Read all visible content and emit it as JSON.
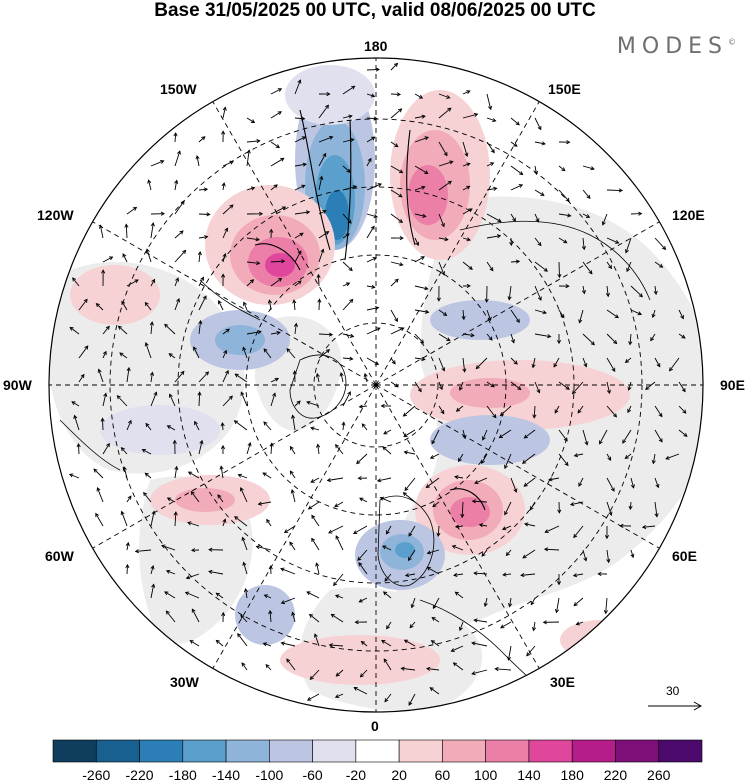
{
  "title": "Base 31/05/2025 00 UTC, valid 08/06/2025 00 UTC",
  "brand": "MODES",
  "brand_mark": "©",
  "longitude_labels": {
    "top": "180",
    "bottom": "0",
    "left": "90W",
    "right": "90E",
    "upper_left_1": "150W",
    "upper_left_2": "120W",
    "lower_left_1": "60W",
    "lower_left_2": "30W",
    "upper_right_1": "150E",
    "upper_right_2": "120E",
    "lower_right_1": "60E",
    "lower_right_2": "30E"
  },
  "reference_vector": "30",
  "colorbar": {
    "labels": [
      "-260",
      "-220",
      "-180",
      "-140",
      "-100",
      "-60",
      "-20",
      "20",
      "60",
      "100",
      "140",
      "180",
      "220",
      "260"
    ],
    "colors": [
      "#0f3d5e",
      "#17608f",
      "#2c7fb6",
      "#5ba0cc",
      "#8fb4d9",
      "#bcc6e3",
      "#e0e0ee",
      "#ffffff",
      "#f7d2d4",
      "#f2abb9",
      "#ec7fa8",
      "#e0479c",
      "#b71c8b",
      "#7e0f7a",
      "#4b0a6b"
    ]
  },
  "map_colors": {
    "land_gray": "#ececec",
    "ocean": "#ffffff",
    "coast": "#000000"
  }
}
